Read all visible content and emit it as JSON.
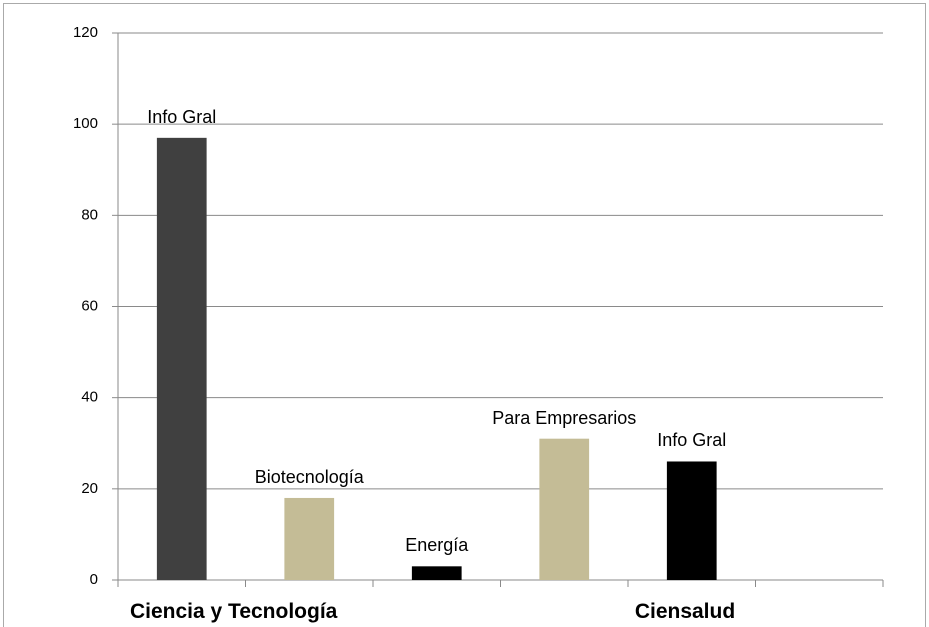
{
  "chart_data": {
    "type": "bar",
    "categories": [
      "Info Gral",
      "Biotecnología",
      "Energía",
      "Para Empresarios",
      "Info Gral",
      null
    ],
    "values": [
      97,
      18,
      3,
      31,
      26,
      null
    ],
    "colors": [
      "#404040",
      "#c4bc96",
      "#000000",
      "#c4bc96",
      "#000000",
      "#000000"
    ],
    "groups": [
      "Ciencia y Tecnología",
      "Ciensalud"
    ],
    "ylim": [
      0,
      120
    ],
    "yticks": [
      0,
      20,
      40,
      60,
      80,
      100,
      120
    ],
    "grid": true
  }
}
